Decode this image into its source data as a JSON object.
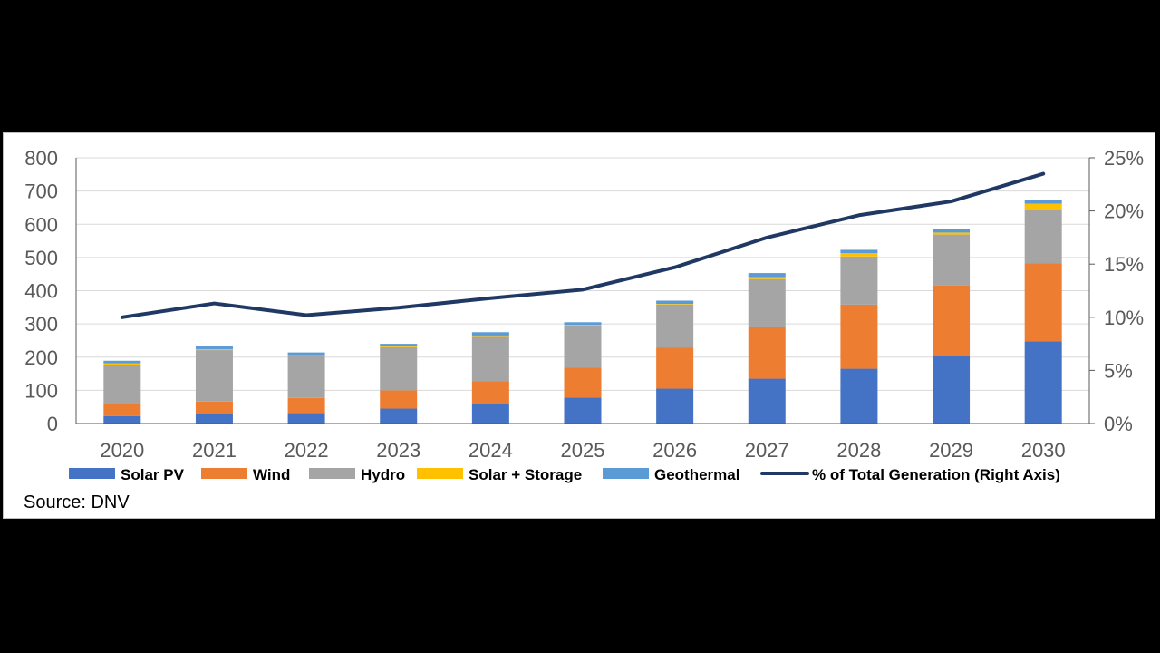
{
  "chart_data": {
    "type": "bar",
    "stacked": true,
    "categories": [
      "2020",
      "2021",
      "2022",
      "2023",
      "2024",
      "2025",
      "2026",
      "2027",
      "2028",
      "2029",
      "2030"
    ],
    "series": [
      {
        "name": "Solar PV",
        "color": "#4472c4",
        "values": [
          22,
          28,
          32,
          45,
          60,
          78,
          105,
          135,
          165,
          203,
          247
        ]
      },
      {
        "name": "Wind",
        "color": "#ed7d31",
        "values": [
          38,
          38,
          45,
          55,
          68,
          90,
          123,
          157,
          193,
          213,
          235
        ]
      },
      {
        "name": "Hydro",
        "color": "#a5a5a5",
        "values": [
          117,
          155,
          127,
          130,
          133,
          127,
          130,
          143,
          145,
          153,
          160
        ]
      },
      {
        "name": "Solar + Storage",
        "color": "#ffc000",
        "values": [
          4,
          3,
          2,
          2,
          4,
          2,
          2,
          6,
          10,
          6,
          20
        ]
      },
      {
        "name": "Geothermal",
        "color": "#5b9bd5",
        "values": [
          8,
          8,
          8,
          8,
          10,
          8,
          10,
          12,
          10,
          10,
          12
        ]
      }
    ],
    "line_series": {
      "name": "% of Total Generation (Right Axis)",
      "color": "#203864",
      "axis": "right",
      "values": [
        10.0,
        11.3,
        10.2,
        10.9,
        11.8,
        12.6,
        14.7,
        17.5,
        19.6,
        20.9,
        23.5
      ]
    },
    "y_left": {
      "min": 0,
      "max": 800,
      "ticks": [
        "0",
        "100",
        "200",
        "300",
        "400",
        "500",
        "600",
        "700",
        "800"
      ],
      "tick_values": [
        0,
        100,
        200,
        300,
        400,
        500,
        600,
        700,
        800
      ]
    },
    "y_right": {
      "min": 0,
      "max": 25,
      "ticks": [
        "0%",
        "5%",
        "10%",
        "15%",
        "20%",
        "25%"
      ],
      "tick_values": [
        0,
        5,
        10,
        15,
        20,
        25
      ]
    },
    "grid": true,
    "legend_position": "bottom"
  },
  "source": "Source: DNV"
}
